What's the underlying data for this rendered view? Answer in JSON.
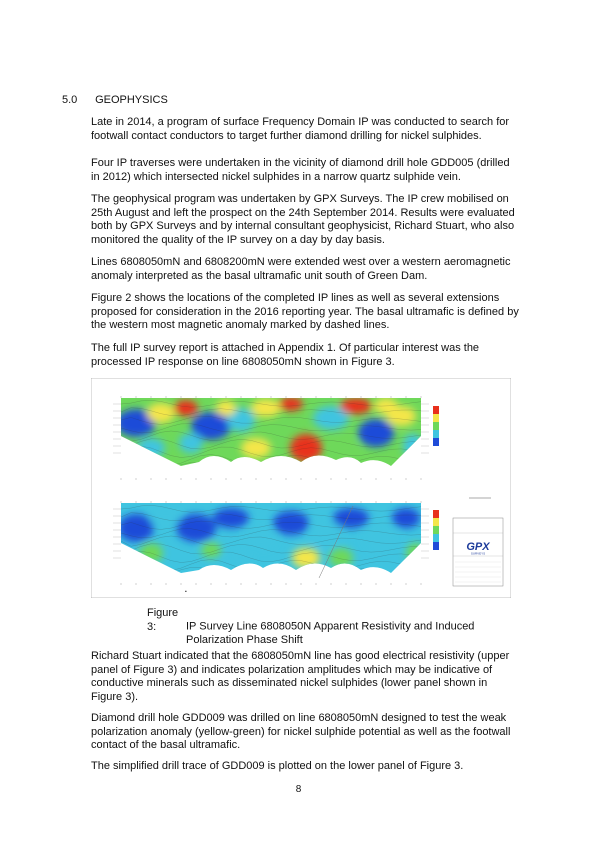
{
  "section": {
    "number": "5.0",
    "title": "GEOPHYSICS"
  },
  "paragraphs": [
    "Late in 2014, a program of surface Frequency Domain IP was conducted to search for footwall contact conductors to target further diamond drilling for nickel sulphides.",
    "Four IP traverses were undertaken in the vicinity of diamond drill hole GDD005 (drilled in 2012) which intersected nickel sulphides in a narrow quartz sulphide vein.",
    "The geophysical program was undertaken by GPX Surveys. The IP crew mobilised on 25th August and left the prospect on the 24th September 2014. Results were evaluated both by GPX Surveys and by internal consultant geophysicist, Richard Stuart, who also monitored the quality of the IP survey on a day by day basis.",
    "Lines 6808050mN and 6808200mN were extended west over a western aeromagnetic anomaly interpreted as the basal ultramafic unit south of Green Dam.",
    "Figure 2 shows the locations of the completed IP lines as well as several extensions proposed for consideration in the 2016 reporting year. The basal ultramafic is defined by the western most magnetic anomaly marked by dashed lines.",
    "The full IP survey report is attached in Appendix 1. Of particular interest was the processed IP response on line 6808050mN shown in Figure 3."
  ],
  "figure": {
    "label": "Figure 3:",
    "caption_line1": "IP Survey Line 6808050N Apparent Resistivity and Induced",
    "caption_line2": "Polarization Phase Shift",
    "logo_text": "GPX",
    "logo_sub": "SURVEYS",
    "colors": {
      "low": "#1f4bd8",
      "mid": "#3fc4e0",
      "green": "#6ed85a",
      "yellow": "#f4e64a",
      "high": "#e8301c"
    }
  },
  "paragraphs_after": [
    "Richard Stuart indicated that the 6808050mN line has good electrical resistivity (upper panel of Figure 3) and indicates polarization amplitudes which may be indicative of conductive minerals such as disseminated nickel sulphides (lower panel shown in Figure 3).",
    "Diamond drill hole GDD009 was drilled on line 6808050mN designed to test the weak polarization anomaly (yellow-green) for nickel sulphide potential as well as the footwall contact of the basal ultramafic.",
    "The simplified drill trace of GDD009 is plotted on the lower panel of Figure 3."
  ],
  "page_number": "8"
}
